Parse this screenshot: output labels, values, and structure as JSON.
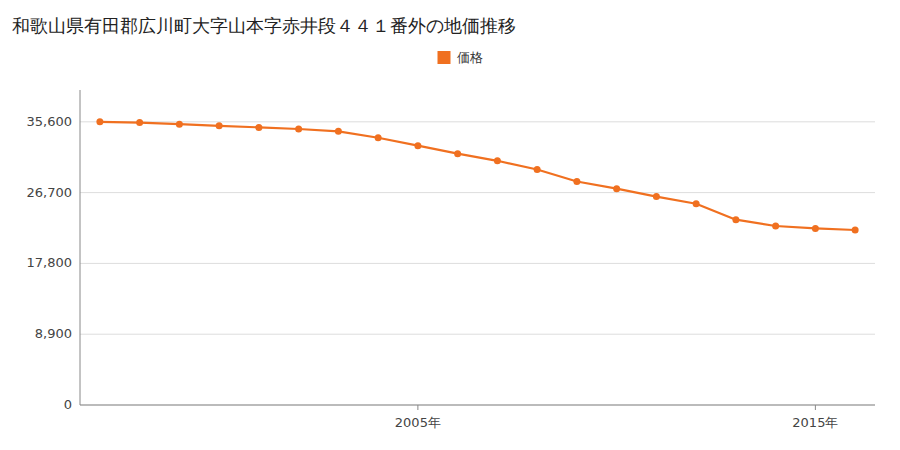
{
  "chart_data": {
    "type": "line",
    "title": "和歌山県有田郡広川町大字山本字赤井段４４１番外の地価推移",
    "x": [
      1997,
      1998,
      1999,
      2000,
      2001,
      2002,
      2003,
      2004,
      2005,
      2006,
      2007,
      2008,
      2009,
      2010,
      2011,
      2012,
      2013,
      2014,
      2015,
      2016
    ],
    "series": [
      {
        "name": "価格",
        "color": "#F07020",
        "marker": "circle",
        "values": [
          35600,
          35500,
          35300,
          35100,
          34900,
          34700,
          34400,
          33600,
          32600,
          31600,
          30700,
          29600,
          28100,
          27200,
          26200,
          25300,
          23300,
          22500,
          22200,
          22000
        ]
      }
    ],
    "xlim": [
      1996.5,
      2016.5
    ],
    "xticks": [
      {
        "value": 2005,
        "label": "2005年"
      },
      {
        "value": 2015,
        "label": "2015年"
      }
    ],
    "ylim": [
      0,
      39600
    ],
    "yticks": [
      0,
      {
        "value": 8900,
        "label": "8,900"
      },
      {
        "value": 17800,
        "label": "17,800"
      },
      {
        "value": 26700,
        "label": "26,700"
      },
      {
        "value": 35600,
        "label": "35,600"
      }
    ],
    "grid": true,
    "legend": "top"
  }
}
